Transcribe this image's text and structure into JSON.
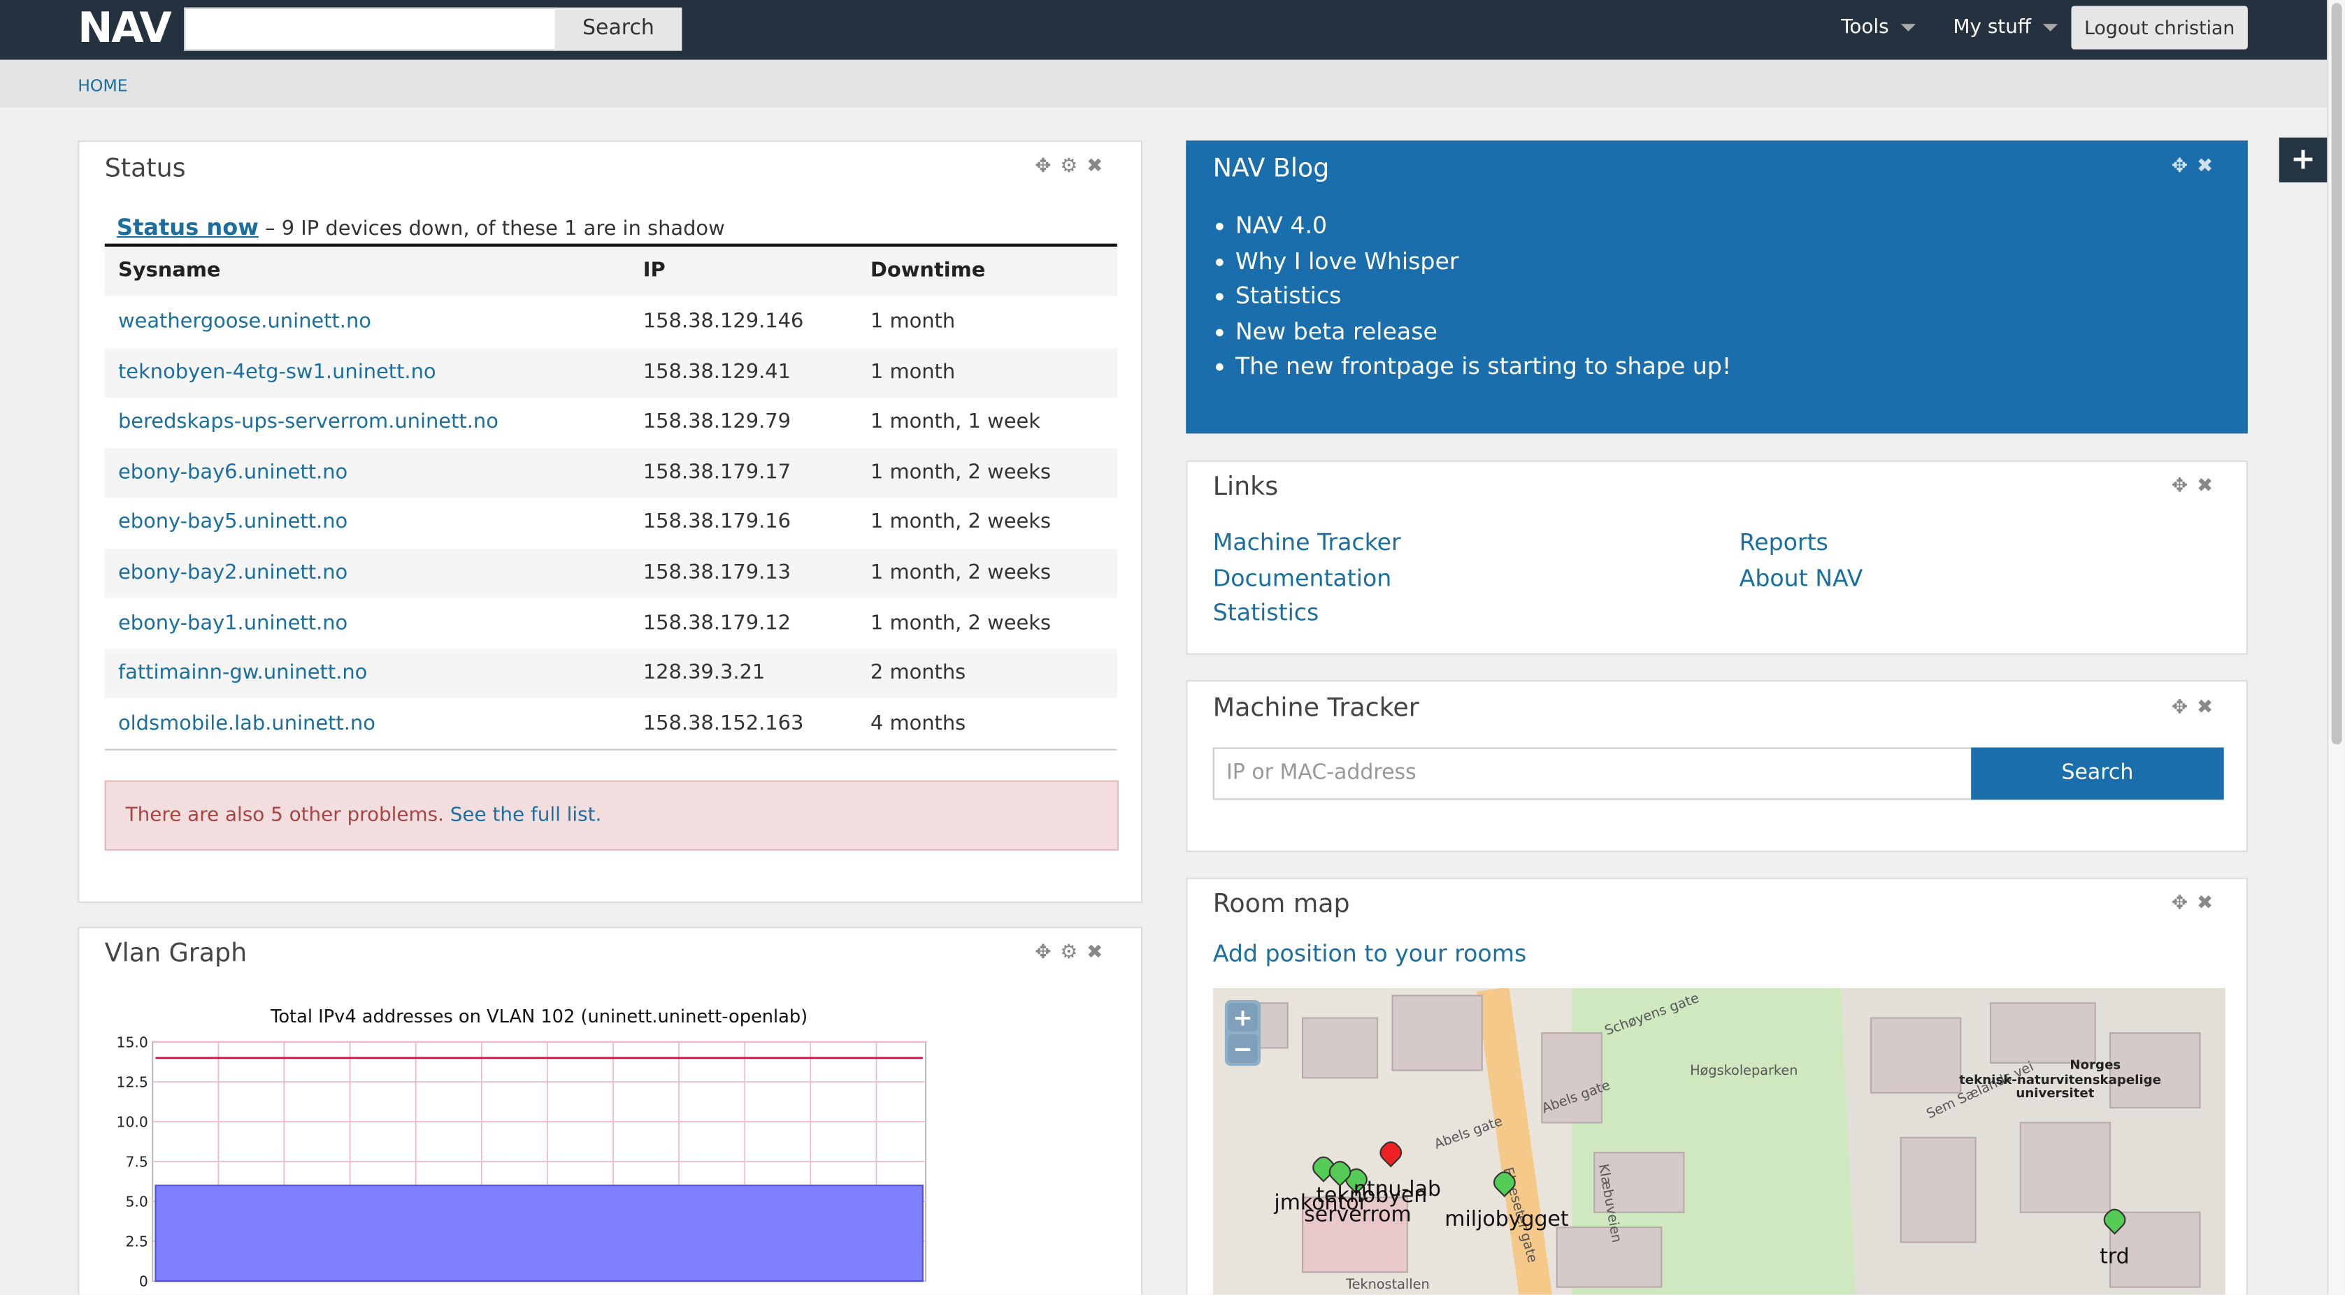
{
  "header": {
    "logo": "NAV",
    "search_button": "Search",
    "menus": [
      "Tools",
      "My stuff"
    ],
    "logout": "Logout christian"
  },
  "breadcrumb": "HOME",
  "status": {
    "title": "Status",
    "link": "Status now",
    "summary": "– 9 IP devices down, of these 1 are in shadow",
    "columns": [
      "Sysname",
      "IP",
      "Downtime"
    ],
    "rows": [
      [
        "weathergoose.uninett.no",
        "158.38.129.146",
        "1 month"
      ],
      [
        "teknobyen-4etg-sw1.uninett.no",
        "158.38.129.41",
        "1 month"
      ],
      [
        "beredskaps-ups-serverrom.uninett.no",
        "158.38.129.79",
        "1 month, 1 week"
      ],
      [
        "ebony-bay6.uninett.no",
        "158.38.179.17",
        "1 month, 2 weeks"
      ],
      [
        "ebony-bay5.uninett.no",
        "158.38.179.16",
        "1 month, 2 weeks"
      ],
      [
        "ebony-bay2.uninett.no",
        "158.38.179.13",
        "1 month, 2 weeks"
      ],
      [
        "ebony-bay1.uninett.no",
        "158.38.179.12",
        "1 month, 2 weeks"
      ],
      [
        "fattimainn-gw.uninett.no",
        "128.39.3.21",
        "2 months"
      ],
      [
        "oldsmobile.lab.uninett.no",
        "158.38.152.163",
        "4 months"
      ]
    ],
    "alert_text": "There are also 5 other problems.",
    "alert_link": "See the full list."
  },
  "vlan_graph": {
    "title": "Vlan Graph",
    "chart_data": {
      "type": "area",
      "title": "Total IPv4 addresses on VLAN 102 (uninett.uninett-openlab)",
      "ylim": [
        0,
        15
      ],
      "yticks": [
        0,
        {
          "value": 2.5,
          "label": "2.5"
        },
        {
          "value": 5,
          "label": "5.0"
        },
        {
          "value": 7.5,
          "label": "7.5"
        },
        {
          "value": 10,
          "label": "10.0"
        },
        {
          "value": 12.5,
          "label": "12.5"
        },
        {
          "value": 15,
          "label": "15.0"
        }
      ],
      "series": [
        {
          "color": "#8080ff",
          "values": [
            6,
            6,
            6,
            6,
            6,
            6,
            6,
            6,
            6,
            6,
            6,
            6
          ]
        },
        {
          "color": "#d0204a",
          "values": [
            14,
            14,
            14,
            14,
            14,
            14,
            14,
            14,
            14,
            14,
            14,
            14
          ]
        }
      ]
    }
  },
  "blog": {
    "title": "NAV Blog",
    "items": [
      "NAV 4.0",
      "Why I love Whisper",
      "Statistics",
      "New beta release",
      "The new frontpage is starting to shape up!"
    ]
  },
  "links": {
    "title": "Links",
    "left": [
      "Machine Tracker",
      "Documentation",
      "Statistics"
    ],
    "right": [
      "Reports",
      "About NAV"
    ]
  },
  "machine_tracker": {
    "title": "Machine Tracker",
    "placeholder": "IP or MAC-address",
    "button": "Search"
  },
  "room_map": {
    "title": "Room map",
    "link": "Add position to your rooms",
    "zoom": [
      "+",
      "−"
    ],
    "streets": [
      "Schøyens gate",
      "Høgskoleparken",
      "Abels gate",
      "Abels gate",
      "Elgeseter gate",
      "Klæbuveien",
      "Sem Sælands vei",
      "Teknostallen"
    ],
    "campus": [
      "Norges",
      "teknisk-naturvitenskapelige",
      "universitet"
    ],
    "markers": [
      "jmkontor",
      "teknobyen",
      "ntnu-lab",
      "serverrom",
      "miljobygget",
      "trd"
    ]
  }
}
